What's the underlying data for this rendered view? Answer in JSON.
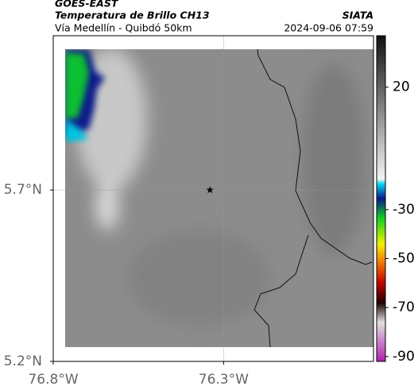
{
  "chart_data": {
    "type": "map",
    "source": "GOES-EAST",
    "title": "Temperatura de Brillo CH13",
    "subtitle": "Vía Medellín - Quibdó 50km",
    "credit": "SIATA",
    "timestamp": "2024-09-06 07:59",
    "xlim": [
      -76.8,
      -75.86
    ],
    "ylim": [
      5.2,
      6.15
    ],
    "xticks": [
      {
        "value": -76.8,
        "label": "76.8°W"
      },
      {
        "value": -76.3,
        "label": "76.3°W"
      }
    ],
    "yticks": [
      {
        "value": 5.2,
        "label": "5.2°N"
      },
      {
        "value": 5.7,
        "label": "5.7°N"
      }
    ],
    "grid": true,
    "marker": {
      "lon": -76.34,
      "lat": 5.7
    },
    "colorbar": {
      "clim": [
        -92,
        41
      ],
      "ticks": [
        20,
        -30,
        -50,
        -70,
        -90
      ]
    }
  }
}
